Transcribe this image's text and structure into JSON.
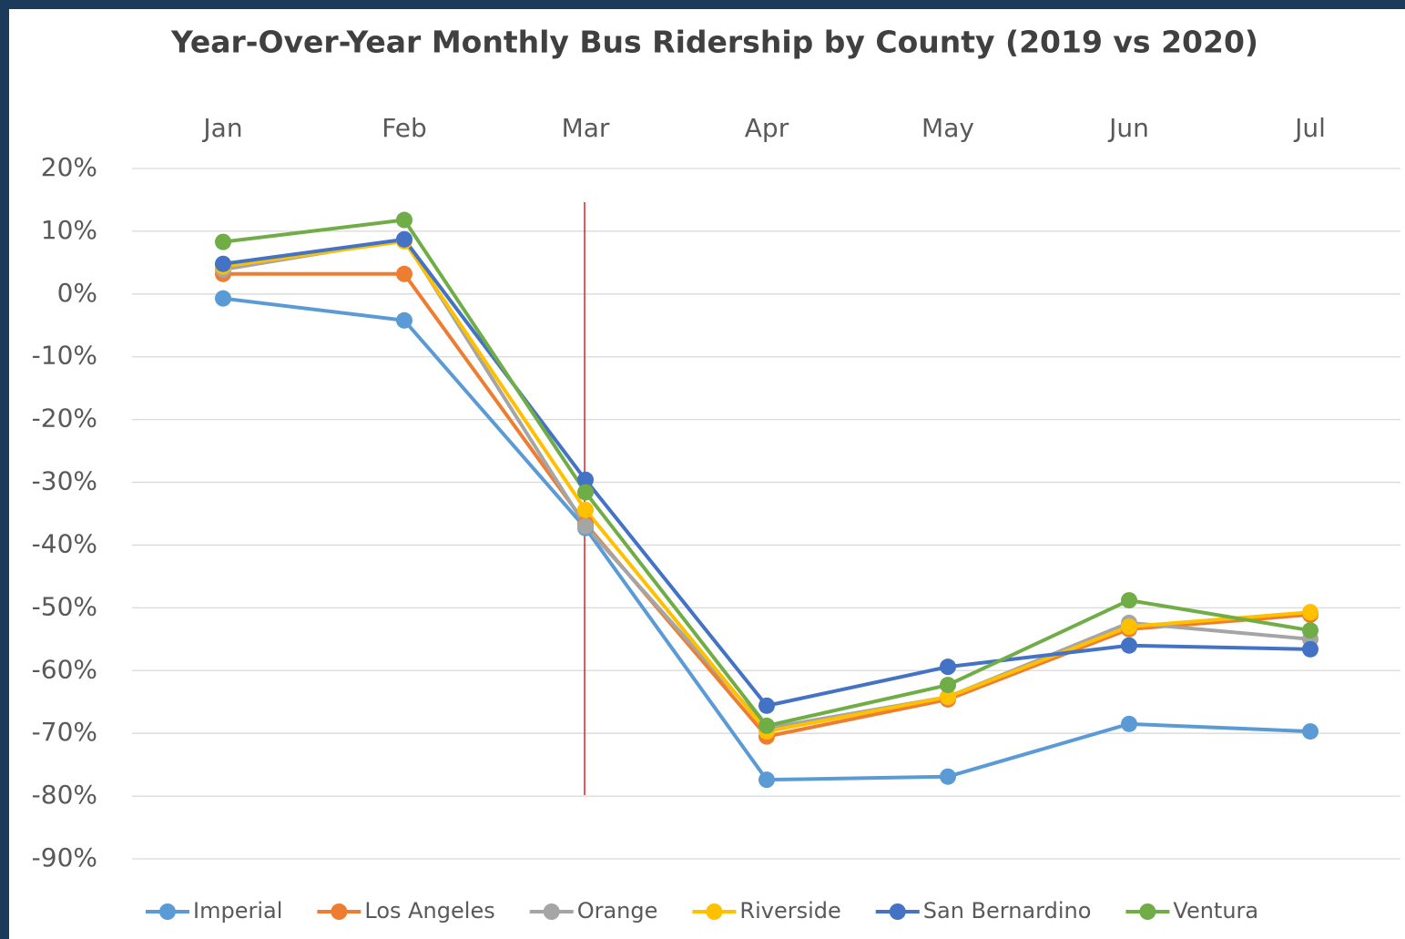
{
  "chart_data": {
    "type": "line",
    "title": "Year-Over-Year Monthly Bus Ridership by County (2019 vs 2020)",
    "categories": [
      "Jan",
      "Feb",
      "Mar",
      "Apr",
      "May",
      "Jun",
      "Jul"
    ],
    "ylim": [
      -90,
      20
    ],
    "yticks": [
      {
        "value": 20,
        "label": "20%"
      },
      {
        "value": 10,
        "label": "10%"
      },
      {
        "value": 0,
        "label": "0%"
      },
      {
        "value": -10,
        "label": "-10%"
      },
      {
        "value": -20,
        "label": "-20%"
      },
      {
        "value": -30,
        "label": "-30%"
      },
      {
        "value": -40,
        "label": "-40%"
      },
      {
        "value": -50,
        "label": "-50%"
      },
      {
        "value": -60,
        "label": "-60%"
      },
      {
        "value": -70,
        "label": "-70%"
      },
      {
        "value": -80,
        "label": "-80%"
      },
      {
        "value": -90,
        "label": "-90%"
      }
    ],
    "grid": true,
    "legend": "bottom",
    "series": [
      {
        "name": "Imperial",
        "color": "#5b9bd5",
        "values": [
          -0.7,
          -4.2,
          -37.3,
          -77.4,
          -76.9,
          -68.5,
          -69.7
        ]
      },
      {
        "name": "Los Angeles",
        "color": "#ed7d31",
        "values": [
          3.2,
          3.2,
          -36.6,
          -70.5,
          -64.6,
          -53.4,
          -51.1
        ]
      },
      {
        "name": "Orange",
        "color": "#a5a5a5",
        "values": [
          3.9,
          8.7,
          -37.0,
          -69.2,
          -64.2,
          -52.4,
          -55.0
        ]
      },
      {
        "name": "Riverside",
        "color": "#ffc000",
        "values": [
          4.4,
          8.4,
          -34.4,
          -69.7,
          -64.2,
          -53.0,
          -50.7
        ]
      },
      {
        "name": "San Bernardino",
        "color": "#4472c4",
        "values": [
          4.8,
          8.7,
          -29.6,
          -65.6,
          -59.4,
          -56.0,
          -56.6
        ]
      },
      {
        "name": "Ventura",
        "color": "#70ad47",
        "values": [
          8.3,
          11.8,
          -31.6,
          -68.8,
          -62.3,
          -48.8,
          -53.6
        ]
      }
    ]
  }
}
